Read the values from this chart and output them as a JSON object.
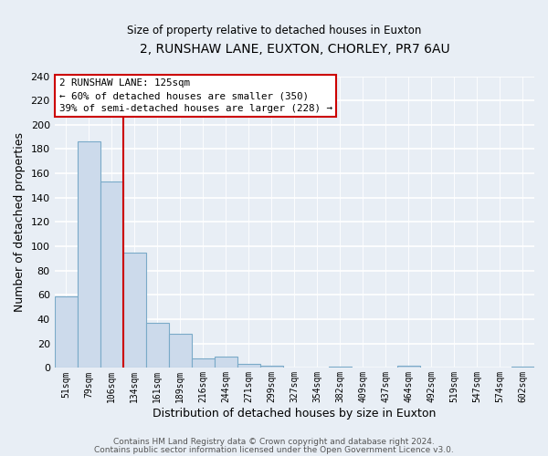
{
  "title": "2, RUNSHAW LANE, EUXTON, CHORLEY, PR7 6AU",
  "subtitle": "Size of property relative to detached houses in Euxton",
  "xlabel": "Distribution of detached houses by size in Euxton",
  "ylabel": "Number of detached properties",
  "bar_labels": [
    "51sqm",
    "79sqm",
    "106sqm",
    "134sqm",
    "161sqm",
    "189sqm",
    "216sqm",
    "244sqm",
    "271sqm",
    "299sqm",
    "327sqm",
    "354sqm",
    "382sqm",
    "409sqm",
    "437sqm",
    "464sqm",
    "492sqm",
    "519sqm",
    "547sqm",
    "574sqm",
    "602sqm"
  ],
  "bar_values": [
    59,
    186,
    153,
    95,
    37,
    28,
    8,
    9,
    3,
    2,
    0,
    0,
    1,
    0,
    0,
    2,
    0,
    0,
    0,
    0,
    1
  ],
  "bar_color": "#ccdaeb",
  "bar_edge_color": "#7aaac8",
  "vline_x": 2.5,
  "vline_color": "#cc0000",
  "ylim": [
    0,
    240
  ],
  "yticks": [
    0,
    20,
    40,
    60,
    80,
    100,
    120,
    140,
    160,
    180,
    200,
    220,
    240
  ],
  "annotation_title": "2 RUNSHAW LANE: 125sqm",
  "annotation_line1": "← 60% of detached houses are smaller (350)",
  "annotation_line2": "39% of semi-detached houses are larger (228) →",
  "footer1": "Contains HM Land Registry data © Crown copyright and database right 2024.",
  "footer2": "Contains public sector information licensed under the Open Government Licence v3.0.",
  "background_color": "#e8eef5",
  "plot_bg_color": "#e8eef5",
  "grid_color": "#ffffff"
}
